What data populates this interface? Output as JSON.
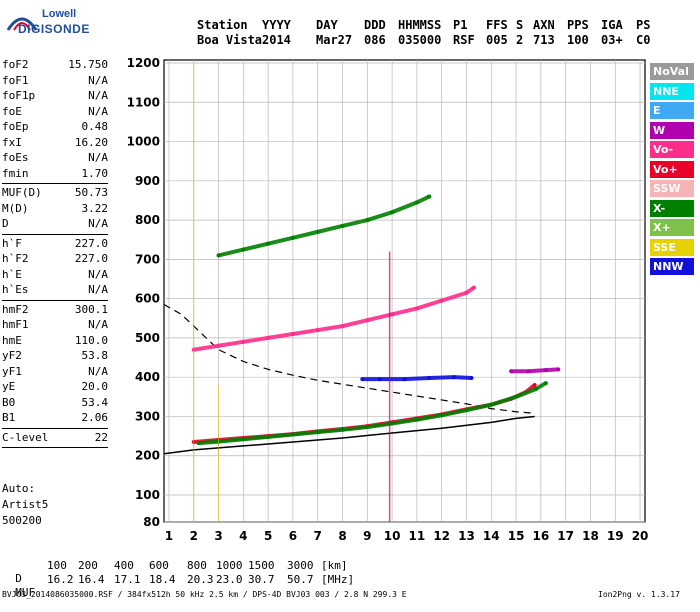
{
  "logo": {
    "line1": "Lowell",
    "line2": "DIGISONDE"
  },
  "header": {
    "row1": [
      "Station",
      "YYYY",
      "DAY",
      "DDD",
      "HHMMSS",
      "P1",
      "FFS",
      "S",
      "AXN",
      "PPS",
      "IGA",
      "PS"
    ],
    "row2": [
      "Boa Vista",
      "2014",
      "Mar27",
      "086",
      "035000",
      "RSF",
      "005",
      "2",
      "713",
      "100",
      "03+",
      "C0"
    ]
  },
  "params": {
    "group1": [
      {
        "name": "foF2",
        "value": "15.750"
      },
      {
        "name": "foF1",
        "value": "N/A"
      },
      {
        "name": "foF1p",
        "value": "N/A"
      },
      {
        "name": "foE",
        "value": "N/A"
      },
      {
        "name": "foEp",
        "value": "0.48"
      },
      {
        "name": "fxI",
        "value": "16.20"
      },
      {
        "name": "foEs",
        "value": "N/A"
      },
      {
        "name": "fmin",
        "value": "1.70"
      }
    ],
    "group2": [
      {
        "name": "MUF(D)",
        "value": "50.73"
      },
      {
        "name": "M(D)",
        "value": "3.22"
      },
      {
        "name": "D",
        "value": "N/A"
      }
    ],
    "group3": [
      {
        "name": "h`F",
        "value": "227.0"
      },
      {
        "name": "h`F2",
        "value": "227.0"
      },
      {
        "name": "h`E",
        "value": "N/A"
      },
      {
        "name": "h`Es",
        "value": "N/A"
      }
    ],
    "group4": [
      {
        "name": "hmF2",
        "value": "300.1"
      },
      {
        "name": "hmF1",
        "value": "N/A"
      },
      {
        "name": "hmE",
        "value": "110.0"
      },
      {
        "name": "yF2",
        "value": "53.8"
      },
      {
        "name": "yF1",
        "value": "N/A"
      },
      {
        "name": "yE",
        "value": "20.0"
      },
      {
        "name": "B0",
        "value": "53.4"
      },
      {
        "name": "B1",
        "value": "2.06"
      }
    ],
    "clevel": {
      "name": "C-level",
      "value": "22"
    }
  },
  "auto": {
    "line1": "Auto:",
    "line2": "Artist5",
    "line3": "500200"
  },
  "legend": [
    {
      "label": "NoVal",
      "color": "#9a9a9a"
    },
    {
      "label": "NNE",
      "color": "#00e5ee"
    },
    {
      "label": "E",
      "color": "#3fa9f5"
    },
    {
      "label": "W",
      "color": "#b000b0"
    },
    {
      "label": "Vo-",
      "color": "#ff2d8a"
    },
    {
      "label": "Vo+",
      "color": "#e8002a"
    },
    {
      "label": "SSW",
      "color": "#f5b5b5"
    },
    {
      "label": "X-",
      "color": "#008000"
    },
    {
      "label": "X+",
      "color": "#7fc04a"
    },
    {
      "label": "SSE",
      "color": "#e6d200"
    },
    {
      "label": "NNW",
      "color": "#1010d8"
    }
  ],
  "footer": {
    "d_label": "D",
    "d_values": [
      "100",
      "200",
      "400",
      "600",
      "800",
      "1000",
      "1500",
      "3000",
      "[km]"
    ],
    "muf_label": "MUF",
    "muf_values": [
      "16.2",
      "16.4",
      "17.1",
      "18.4",
      "20.3",
      "23.0",
      "30.7",
      "50.7",
      "[MHz]"
    ],
    "file_line": "BVJ03_2014086035000.RSF / 384fx512h 50 kHz 2.5 km / DPS-4D BVJ03 003 / 2.8 N 299.3 E",
    "version": "Ion2Png v. 1.3.17"
  },
  "chart_data": {
    "type": "scatter",
    "x_ticks": [
      1,
      2,
      3,
      4,
      5,
      6,
      7,
      8,
      9,
      10,
      11,
      12,
      13,
      14,
      15,
      16,
      17,
      18,
      19,
      20
    ],
    "y_ticks": [
      80,
      100,
      200,
      300,
      400,
      500,
      600,
      700,
      800,
      900,
      1000,
      1100,
      1200
    ],
    "xlim": [
      0.8,
      20.2
    ],
    "ylim": [
      80,
      1200
    ],
    "grid": true,
    "series": [
      {
        "color_key": "Vo+",
        "trace": "F-layer O trace",
        "points": [
          [
            2.0,
            235
          ],
          [
            3,
            240
          ],
          [
            4,
            245
          ],
          [
            5,
            250
          ],
          [
            6,
            255
          ],
          [
            7,
            262
          ],
          [
            8,
            268
          ],
          [
            9,
            275
          ],
          [
            10,
            285
          ],
          [
            11,
            295
          ],
          [
            12,
            305
          ],
          [
            13,
            318
          ],
          [
            14,
            330
          ],
          [
            14.8,
            345
          ],
          [
            15.4,
            362
          ],
          [
            15.75,
            380
          ]
        ]
      },
      {
        "color_key": "X-",
        "trace": "F-layer X trace",
        "points": [
          [
            2.2,
            232
          ],
          [
            3,
            236
          ],
          [
            4,
            242
          ],
          [
            5,
            248
          ],
          [
            6,
            254
          ],
          [
            7,
            260
          ],
          [
            8,
            266
          ],
          [
            9,
            273
          ],
          [
            10,
            282
          ],
          [
            11,
            292
          ],
          [
            12,
            303
          ],
          [
            13,
            316
          ],
          [
            14,
            330
          ],
          [
            15,
            350
          ],
          [
            15.8,
            370
          ],
          [
            16.2,
            385
          ]
        ]
      },
      {
        "color_key": "Vo-",
        "trace": "2nd hop",
        "points": [
          [
            2,
            470
          ],
          [
            3,
            480
          ],
          [
            4,
            490
          ],
          [
            5,
            500
          ],
          [
            6,
            510
          ],
          [
            7,
            520
          ],
          [
            8,
            530
          ],
          [
            9,
            545
          ],
          [
            10,
            560
          ],
          [
            11,
            575
          ],
          [
            12,
            595
          ],
          [
            13,
            615
          ],
          [
            13.3,
            628
          ]
        ]
      },
      {
        "color_key": "X-",
        "trace": "3rd hop",
        "points": [
          [
            3,
            710
          ],
          [
            4,
            725
          ],
          [
            5,
            740
          ],
          [
            6,
            755
          ],
          [
            7,
            770
          ],
          [
            8,
            785
          ],
          [
            9,
            800
          ],
          [
            10,
            820
          ],
          [
            11,
            845
          ],
          [
            11.5,
            860
          ]
        ]
      },
      {
        "color_key": "NNW",
        "trace": "spread F",
        "points": [
          [
            8.8,
            395
          ],
          [
            9.5,
            395
          ],
          [
            10.5,
            395
          ],
          [
            11.5,
            398
          ],
          [
            12.5,
            400
          ],
          [
            13.2,
            398
          ]
        ]
      },
      {
        "color_key": "W",
        "trace": "spread F west",
        "points": [
          [
            14.8,
            415
          ],
          [
            15.5,
            415
          ],
          [
            16.2,
            418
          ],
          [
            16.7,
            420
          ]
        ]
      }
    ],
    "model_profile": [
      [
        0.8,
        205
      ],
      [
        2,
        215
      ],
      [
        4,
        225
      ],
      [
        6,
        235
      ],
      [
        8,
        245
      ],
      [
        10,
        258
      ],
      [
        12,
        270
      ],
      [
        14,
        285
      ],
      [
        15,
        295
      ],
      [
        15.75,
        300
      ]
    ],
    "dashed_curve": [
      [
        0.8,
        585
      ],
      [
        1.5,
        560
      ],
      [
        2,
        530
      ],
      [
        3,
        470
      ],
      [
        4,
        440
      ],
      [
        5,
        420
      ],
      [
        6,
        405
      ],
      [
        7,
        392
      ],
      [
        8,
        382
      ],
      [
        9,
        372
      ],
      [
        10,
        362
      ],
      [
        11,
        352
      ],
      [
        12,
        342
      ],
      [
        13,
        332
      ],
      [
        14,
        320
      ],
      [
        15,
        312
      ],
      [
        15.75,
        308
      ]
    ]
  }
}
